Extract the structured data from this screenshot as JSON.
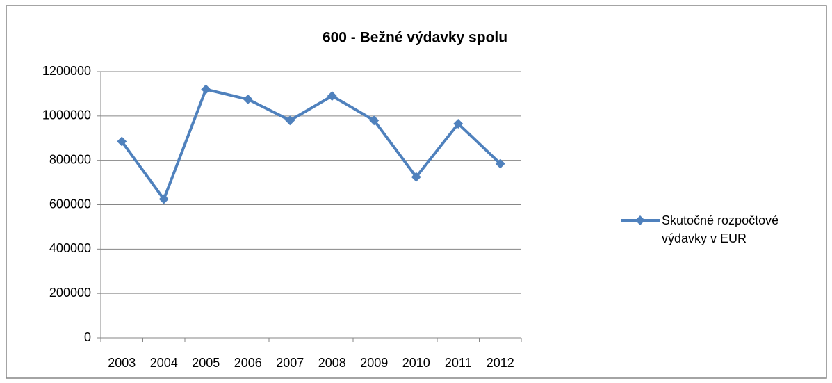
{
  "chart_data": {
    "type": "line",
    "title": "600 - Bežné výdavky spolu",
    "categories": [
      "2003",
      "2004",
      "2005",
      "2006",
      "2007",
      "2008",
      "2009",
      "2010",
      "2011",
      "2012"
    ],
    "series": [
      {
        "name": "Skutočné rozpočtové výdavky v EUR",
        "color": "#4f81bd",
        "values": [
          885000,
          625000,
          1120000,
          1075000,
          980000,
          1090000,
          980000,
          725000,
          965000,
          785000
        ]
      }
    ],
    "ylim": [
      0,
      1200000
    ],
    "yticks": [
      0,
      200000,
      400000,
      600000,
      800000,
      1000000,
      1200000
    ],
    "grid": true,
    "legend": "right"
  }
}
